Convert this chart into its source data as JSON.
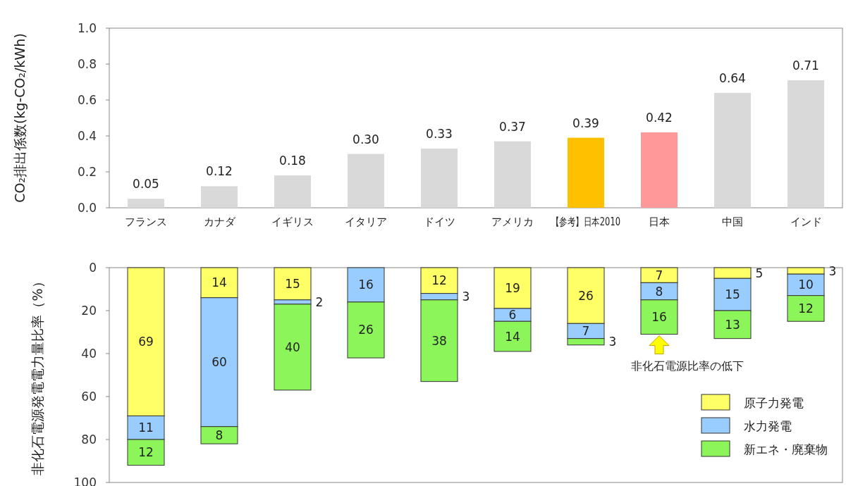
{
  "chart_data": [
    {
      "type": "bar",
      "ylabel": "CO₂排出係数(kg-CO₂/kWh)",
      "categories": [
        "フランス",
        "カナダ",
        "イギリス",
        "イタリア",
        "ドイツ",
        "アメリカ",
        "【参考】日本2010",
        "日本",
        "中国",
        "インド"
      ],
      "values": [
        0.05,
        0.12,
        0.18,
        0.3,
        0.33,
        0.37,
        0.39,
        0.42,
        0.64,
        0.71
      ],
      "colors": [
        "#d9d9d9",
        "#d9d9d9",
        "#d9d9d9",
        "#d9d9d9",
        "#d9d9d9",
        "#d9d9d9",
        "#ffc000",
        "#ff9999",
        "#d9d9d9",
        "#d9d9d9"
      ],
      "value_labels": [
        "0.05",
        "0.12",
        "0.18",
        "0.30",
        "0.33",
        "0.37",
        "0.39",
        "0.42",
        "0.64",
        "0.71"
      ],
      "ylim": [
        0,
        1
      ],
      "yticks": [
        {
          "value": 0,
          "label": "0.0"
        },
        {
          "value": 0.2,
          "label": "0.2"
        },
        {
          "value": 0.4,
          "label": "0.4"
        },
        {
          "value": 0.6,
          "label": "0.6"
        },
        {
          "value": 0.8,
          "label": "0.8"
        },
        {
          "value": 1,
          "label": "1.0"
        }
      ]
    },
    {
      "type": "bar",
      "stacked": true,
      "ylabel": "非化石電源発電電力量比率（%）",
      "categories": [
        "フランス",
        "カナダ",
        "イギリス",
        "イタリア",
        "ドイツ",
        "アメリカ",
        "【参考】日本2010",
        "日本",
        "中国",
        "インド"
      ],
      "series": [
        {
          "name": "原子力発電",
          "color": "#ffff66",
          "values": [
            69,
            14,
            15,
            null,
            12,
            19,
            26,
            7,
            5,
            3
          ]
        },
        {
          "name": "水力発電",
          "color": "#99ccff",
          "values": [
            11,
            60,
            2,
            16,
            3,
            6,
            7,
            8,
            15,
            10
          ]
        },
        {
          "name": "新エネ・廃棄物",
          "color": "#8cf55a",
          "values": [
            12,
            8,
            40,
            26,
            38,
            14,
            3,
            16,
            13,
            12
          ]
        }
      ],
      "ylim": [
        100,
        0
      ],
      "yticks": [
        0,
        20,
        40,
        60,
        80,
        100
      ],
      "tick_labels": "y",
      "data_labels": true,
      "legend": "bottom right",
      "annotations": [
        {
          "text": "非化石電源比率の低下",
          "x": "日本",
          "y": 31
        }
      ]
    }
  ]
}
